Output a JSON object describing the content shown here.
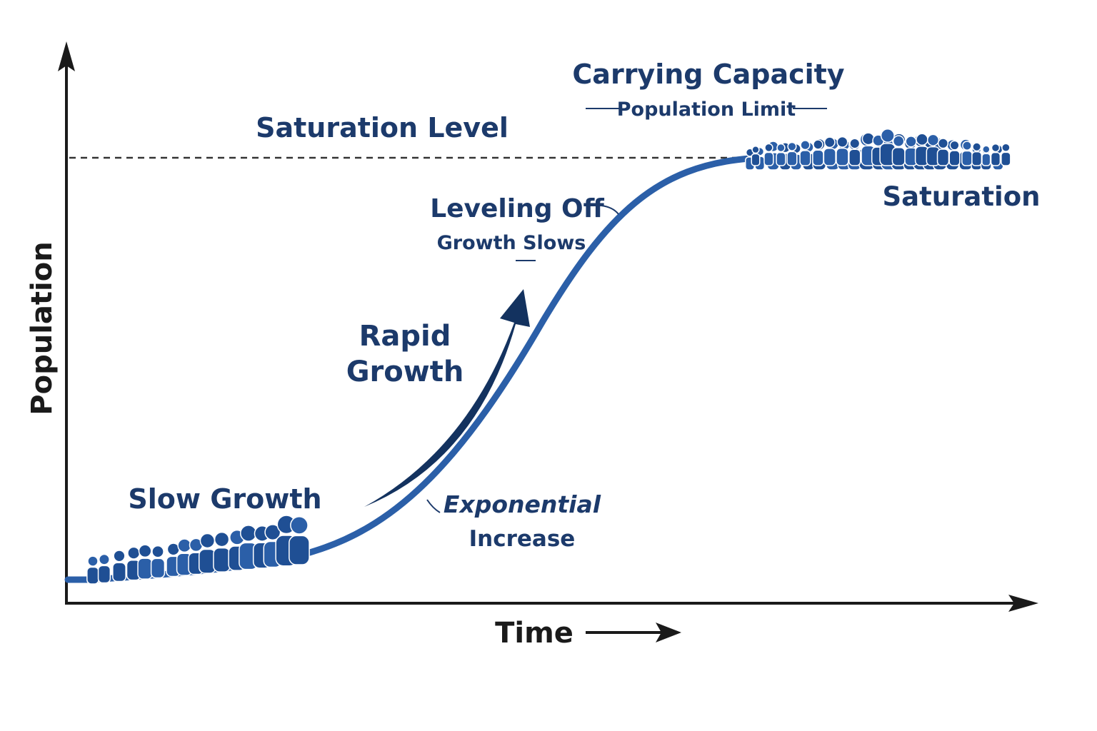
{
  "axes": {
    "y_label": "Population",
    "x_label": "Time"
  },
  "labels": {
    "saturation_level": "Saturation Level",
    "carrying_capacity": {
      "title": "Carrying Capacity",
      "subtitle": "Population Limit"
    },
    "saturation": "Saturation",
    "leveling_off": {
      "title": "Leveling Off",
      "subtitle": "Growth Slows"
    },
    "rapid_growth": [
      "Rapid",
      "Growth"
    ],
    "slow_growth": "Slow Growth",
    "exponential_increase": [
      "Exponential",
      "Increase"
    ]
  }
}
